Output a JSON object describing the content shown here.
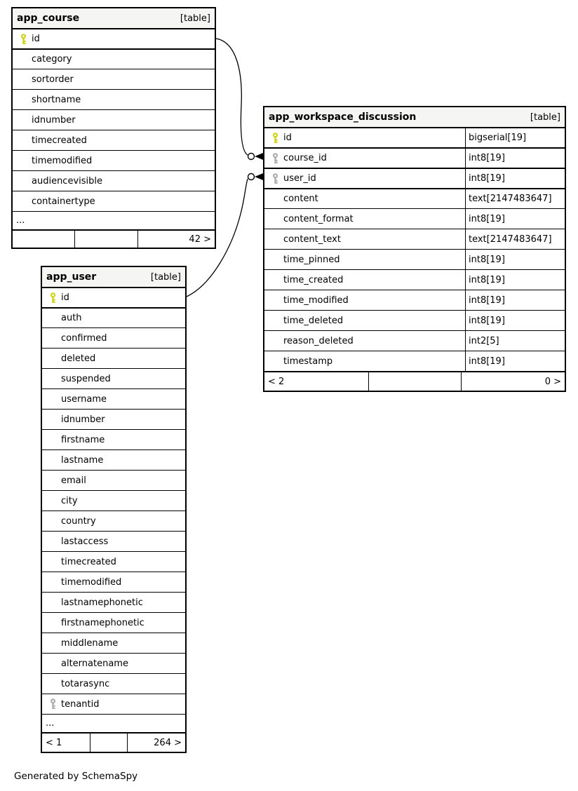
{
  "page": {
    "footer_note": "Generated by SchemaSpy"
  },
  "colors": {
    "header_bg": "#f5f5f3",
    "border": "#000000",
    "primary_key": "#cfd00e",
    "foreign_key": "#ababab"
  },
  "tables": [
    {
      "name": "app_course",
      "badge": "[table]",
      "columns": [
        {
          "name": "id",
          "key": "primary",
          "linked": true
        },
        {
          "name": "category"
        },
        {
          "name": "sortorder"
        },
        {
          "name": "shortname"
        },
        {
          "name": "idnumber"
        },
        {
          "name": "timecreated"
        },
        {
          "name": "timemodified"
        },
        {
          "name": "audiencevisible"
        },
        {
          "name": "containertype"
        }
      ],
      "more": "...",
      "footer": {
        "left": "",
        "middle": "",
        "right": "42 >"
      }
    },
    {
      "name": "app_workspace_discussion",
      "badge": "[table]",
      "columns": [
        {
          "name": "id",
          "type": "bigserial[19]",
          "key": "primary",
          "linked": true
        },
        {
          "name": "course_id",
          "type": "int8[19]",
          "key": "foreign",
          "linked": true
        },
        {
          "name": "user_id",
          "type": "int8[19]",
          "key": "foreign",
          "linked": true
        },
        {
          "name": "content",
          "type": "text[2147483647]"
        },
        {
          "name": "content_format",
          "type": "int8[19]"
        },
        {
          "name": "content_text",
          "type": "text[2147483647]"
        },
        {
          "name": "time_pinned",
          "type": "int8[19]"
        },
        {
          "name": "time_created",
          "type": "int8[19]"
        },
        {
          "name": "time_modified",
          "type": "int8[19]"
        },
        {
          "name": "time_deleted",
          "type": "int8[19]"
        },
        {
          "name": "reason_deleted",
          "type": "int2[5]"
        },
        {
          "name": "timestamp",
          "type": "int8[19]"
        }
      ],
      "footer": {
        "left": "< 2",
        "middle": "",
        "right": "0 >"
      }
    },
    {
      "name": "app_user",
      "badge": "[table]",
      "columns": [
        {
          "name": "id",
          "key": "primary",
          "linked": true
        },
        {
          "name": "auth"
        },
        {
          "name": "confirmed"
        },
        {
          "name": "deleted"
        },
        {
          "name": "suspended"
        },
        {
          "name": "username"
        },
        {
          "name": "idnumber"
        },
        {
          "name": "firstname"
        },
        {
          "name": "lastname"
        },
        {
          "name": "email"
        },
        {
          "name": "city"
        },
        {
          "name": "country"
        },
        {
          "name": "lastaccess"
        },
        {
          "name": "timecreated"
        },
        {
          "name": "timemodified"
        },
        {
          "name": "lastnamephonetic"
        },
        {
          "name": "firstnamephonetic"
        },
        {
          "name": "middlename"
        },
        {
          "name": "alternatename"
        },
        {
          "name": "totarasync"
        },
        {
          "name": "tenantid",
          "key": "foreign"
        }
      ],
      "more": "...",
      "footer": {
        "left": "< 1",
        "middle": "",
        "right": "264 >"
      }
    }
  ],
  "relationships": [
    {
      "from": "app_course.id",
      "to": "app_workspace_discussion.course_id"
    },
    {
      "from": "app_user.id",
      "to": "app_workspace_discussion.user_id"
    }
  ]
}
